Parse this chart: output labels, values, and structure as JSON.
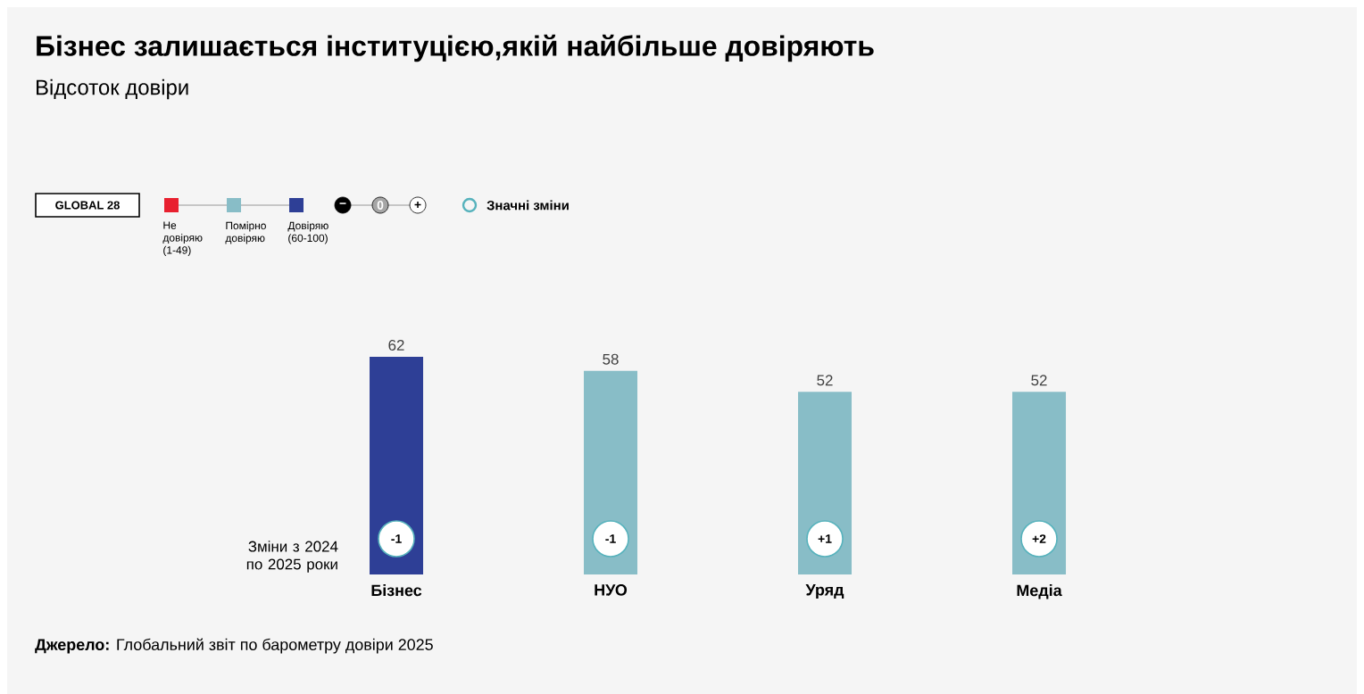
{
  "chart_data": {
    "type": "bar",
    "title": "Бізнес залишається інституцією,якій найбільше довіряють",
    "subtitle": "Відсоток довіри",
    "categories": [
      "Бізнес",
      "НУО",
      "Уряд",
      "Медіа"
    ],
    "series": [
      {
        "name": "Не довіряю (1-49)",
        "color": "#e8202f",
        "values": [
          null,
          null,
          null,
          null
        ]
      },
      {
        "name": "Помірно довіряю",
        "color": "#88bdc7",
        "values": [
          null,
          58,
          52,
          52
        ]
      },
      {
        "name": "Довіряю (60-100)",
        "color": "#2e3f96",
        "values": [
          62,
          null,
          null,
          null
        ]
      }
    ],
    "data_labels": true,
    "legend": "top left",
    "legend_title": "GLOBAL 28",
    "annotations": [
      "−",
      "0",
      "+",
      "Значні зміни",
      "Зміни з 2024 по 2025 роки",
      {
        "text": "-1",
        "x": "Бізнес"
      },
      {
        "text": "-1",
        "x": "НУО"
      },
      {
        "text": "+1",
        "x": "Уряд"
      },
      {
        "text": "+2",
        "x": "Медіа"
      },
      "**Джерело:** Глобальний звіт по барометру довіри 2025"
    ]
  }
}
